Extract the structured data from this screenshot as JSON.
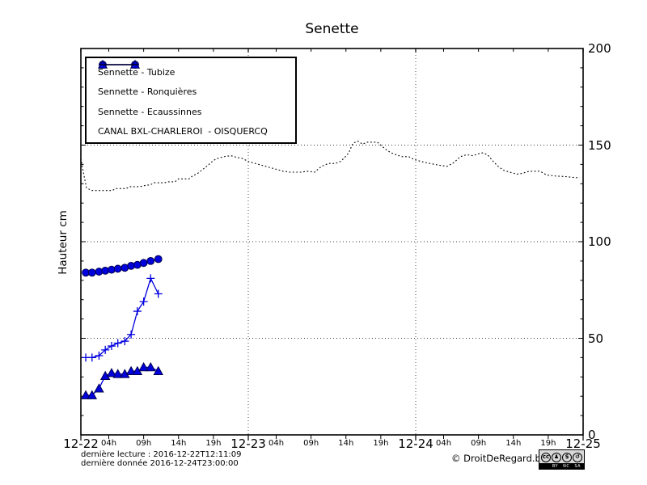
{
  "chart": {
    "title": "Senette",
    "ylabel": "Hauteur cm"
  },
  "chart_data": {
    "type": "line",
    "title": "Senette",
    "xlabel": "",
    "ylabel": "Hauteur cm",
    "x_unit": "hours since 2016-12-22 00:00",
    "xlim": [
      0,
      72
    ],
    "ylim": [
      0,
      200
    ],
    "grid": {
      "horizontal_at": [
        50,
        100,
        150
      ],
      "vertical_at": [
        24,
        48
      ],
      "style": "dotted"
    },
    "legend_position": "upper left",
    "x_day_ticks": [
      {
        "label": "12-22",
        "hour": 0
      },
      {
        "label": "12-23",
        "hour": 24
      },
      {
        "label": "12-24",
        "hour": 48
      },
      {
        "label": "12-25",
        "hour": 72
      }
    ],
    "x_hour_ticks": [
      {
        "label": "04h",
        "hour": 4
      },
      {
        "label": "09h",
        "hour": 9
      },
      {
        "label": "14h",
        "hour": 14
      },
      {
        "label": "19h",
        "hour": 19
      },
      {
        "label": "04h",
        "hour": 28
      },
      {
        "label": "09h",
        "hour": 33
      },
      {
        "label": "14h",
        "hour": 38
      },
      {
        "label": "19h",
        "hour": 43
      },
      {
        "label": "04h",
        "hour": 52
      },
      {
        "label": "09h",
        "hour": 57
      },
      {
        "label": "14h",
        "hour": 62
      },
      {
        "label": "19h",
        "hour": 67
      }
    ],
    "y_ticks": [
      0,
      50,
      100,
      150,
      200
    ],
    "series": [
      {
        "name": "Sennette - Tubize",
        "marker": "circle",
        "line": "solid",
        "color": "#0000dd",
        "x": [
          0.7,
          1.6,
          2.6,
          3.5,
          4.4,
          5.3,
          6.3,
          7.2,
          8.1,
          9.0,
          10.0,
          11.1
        ],
        "values": [
          84,
          84,
          84.5,
          85,
          85.5,
          86,
          86.5,
          87.5,
          88,
          89,
          90,
          91
        ]
      },
      {
        "name": "Sennette - Ronquières",
        "marker": "plus",
        "line": "solid",
        "color": "#0000dd",
        "x": [
          0.7,
          1.6,
          2.6,
          3.5,
          4.4,
          5.3,
          6.3,
          7.2,
          8.1,
          9.0,
          10.0,
          11.1
        ],
        "values": [
          40,
          40,
          41,
          44,
          46,
          47.5,
          48.5,
          52,
          64,
          69,
          81,
          73
        ]
      },
      {
        "name": "Sennette - Ecaussinnes",
        "marker": "triangle",
        "line": "solid",
        "color": "#0000dd",
        "x": [
          0.7,
          1.6,
          2.6,
          3.5,
          4.4,
          5.3,
          6.3,
          7.2,
          8.1,
          9.0,
          10.0,
          11.1
        ],
        "values": [
          20.5,
          20.5,
          24,
          30.5,
          32,
          31.5,
          31.5,
          33,
          33,
          35,
          35,
          33
        ]
      },
      {
        "name": "CANAL BXL-CHARLEROI  - OISQUERCQ",
        "marker": "none",
        "line": "dotted",
        "color": "#000000",
        "points": [
          [
            0,
            143
          ],
          [
            0.4,
            135
          ],
          [
            0.8,
            128
          ],
          [
            1.5,
            126.5
          ],
          [
            3,
            126.5
          ],
          [
            4.5,
            126.5
          ],
          [
            5,
            127.5
          ],
          [
            6.5,
            127.5
          ],
          [
            7,
            128.5
          ],
          [
            8.5,
            128.5
          ],
          [
            9,
            129
          ],
          [
            10,
            129.5
          ],
          [
            10.5,
            130.5
          ],
          [
            12,
            130.5
          ],
          [
            12.5,
            131
          ],
          [
            13.5,
            131
          ],
          [
            14,
            132.5
          ],
          [
            15.5,
            132.5
          ],
          [
            16,
            134
          ],
          [
            16.8,
            135.5
          ],
          [
            17.5,
            137.5
          ],
          [
            18.2,
            139.5
          ],
          [
            19,
            142
          ],
          [
            19.5,
            143
          ],
          [
            20.5,
            144
          ],
          [
            21.5,
            144.5
          ],
          [
            22.5,
            143.5
          ],
          [
            23.2,
            143
          ],
          [
            24,
            141.5
          ],
          [
            25,
            140.5
          ],
          [
            26,
            139.5
          ],
          [
            27,
            138.5
          ],
          [
            28,
            137.5
          ],
          [
            29,
            136.5
          ],
          [
            30,
            136
          ],
          [
            31.5,
            136
          ],
          [
            32.5,
            136.5
          ],
          [
            33.5,
            136
          ],
          [
            34.5,
            139
          ],
          [
            35.5,
            140.5
          ],
          [
            36.5,
            140.5
          ],
          [
            37.2,
            141.5
          ],
          [
            37.8,
            143.5
          ],
          [
            38.4,
            146
          ],
          [
            39,
            151
          ],
          [
            39.7,
            152
          ],
          [
            40.4,
            150.5
          ],
          [
            41,
            151.5
          ],
          [
            42.5,
            151.5
          ],
          [
            43.3,
            149
          ],
          [
            44,
            147
          ],
          [
            44.8,
            145.5
          ],
          [
            46,
            144
          ],
          [
            47,
            144
          ],
          [
            47.8,
            142.5
          ],
          [
            48.8,
            141.5
          ],
          [
            50,
            140.5
          ],
          [
            51.5,
            139.5
          ],
          [
            52.5,
            139
          ],
          [
            53.5,
            141
          ],
          [
            54.4,
            144
          ],
          [
            55.3,
            145
          ],
          [
            56.2,
            144.5
          ],
          [
            57,
            145.5
          ],
          [
            57.6,
            146
          ],
          [
            58.3,
            145
          ],
          [
            59,
            142
          ],
          [
            59.8,
            139
          ],
          [
            60.6,
            137
          ],
          [
            61.5,
            136
          ],
          [
            62.5,
            135
          ],
          [
            63.2,
            135.3
          ],
          [
            64.3,
            136.5
          ],
          [
            65.8,
            136.5
          ],
          [
            66.8,
            134.5
          ],
          [
            68,
            134
          ],
          [
            69.5,
            133.7
          ],
          [
            70.5,
            133.3
          ],
          [
            71.5,
            133
          ]
        ]
      }
    ]
  },
  "footer": {
    "derniere_lecture": "dernière lecture : 2016-12-22T12:11:09",
    "derniere_donnee": "dernière donnée  2016-12-24T23:00:00",
    "copyright": "© DroitDeRegard.be"
  },
  "cc_badge": {
    "cc_glyph": "cc",
    "items": [
      {
        "glyph": "♟",
        "label": "BY"
      },
      {
        "glyph": "$",
        "label": "NC"
      },
      {
        "glyph": "↺",
        "label": "SA"
      }
    ]
  }
}
